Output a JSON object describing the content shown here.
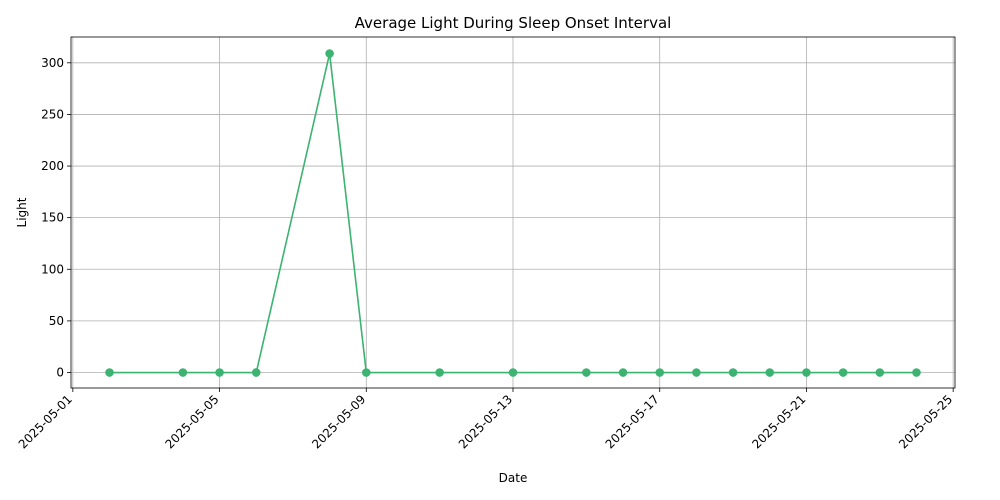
{
  "chart_data": {
    "type": "line",
    "title": "Average Light During Sleep Onset Interval",
    "xlabel": "Date",
    "ylabel": "Light",
    "grid": true,
    "x_axis_type": "date",
    "xlim": [
      "2025-05-01",
      "2025-05-25"
    ],
    "ylim": [
      -15,
      325
    ],
    "x_ticks": [
      "2025-05-01",
      "2025-05-05",
      "2025-05-09",
      "2025-05-13",
      "2025-05-17",
      "2025-05-21",
      "2025-05-25"
    ],
    "y_ticks": [
      0,
      50,
      100,
      150,
      200,
      250,
      300
    ],
    "series": [
      {
        "color": "#3cb371",
        "marker": "circle",
        "x": [
          "2025-05-02",
          "2025-05-04",
          "2025-05-05",
          "2025-05-06",
          "2025-05-08",
          "2025-05-09",
          "2025-05-11",
          "2025-05-13",
          "2025-05-15",
          "2025-05-16",
          "2025-05-17",
          "2025-05-18",
          "2025-05-19",
          "2025-05-20",
          "2025-05-21",
          "2025-05-22",
          "2025-05-23",
          "2025-05-24"
        ],
        "values": [
          0,
          0,
          0,
          0,
          309,
          0,
          0,
          0,
          0,
          0,
          0,
          0,
          0,
          0,
          0,
          0,
          0,
          0
        ]
      }
    ]
  }
}
